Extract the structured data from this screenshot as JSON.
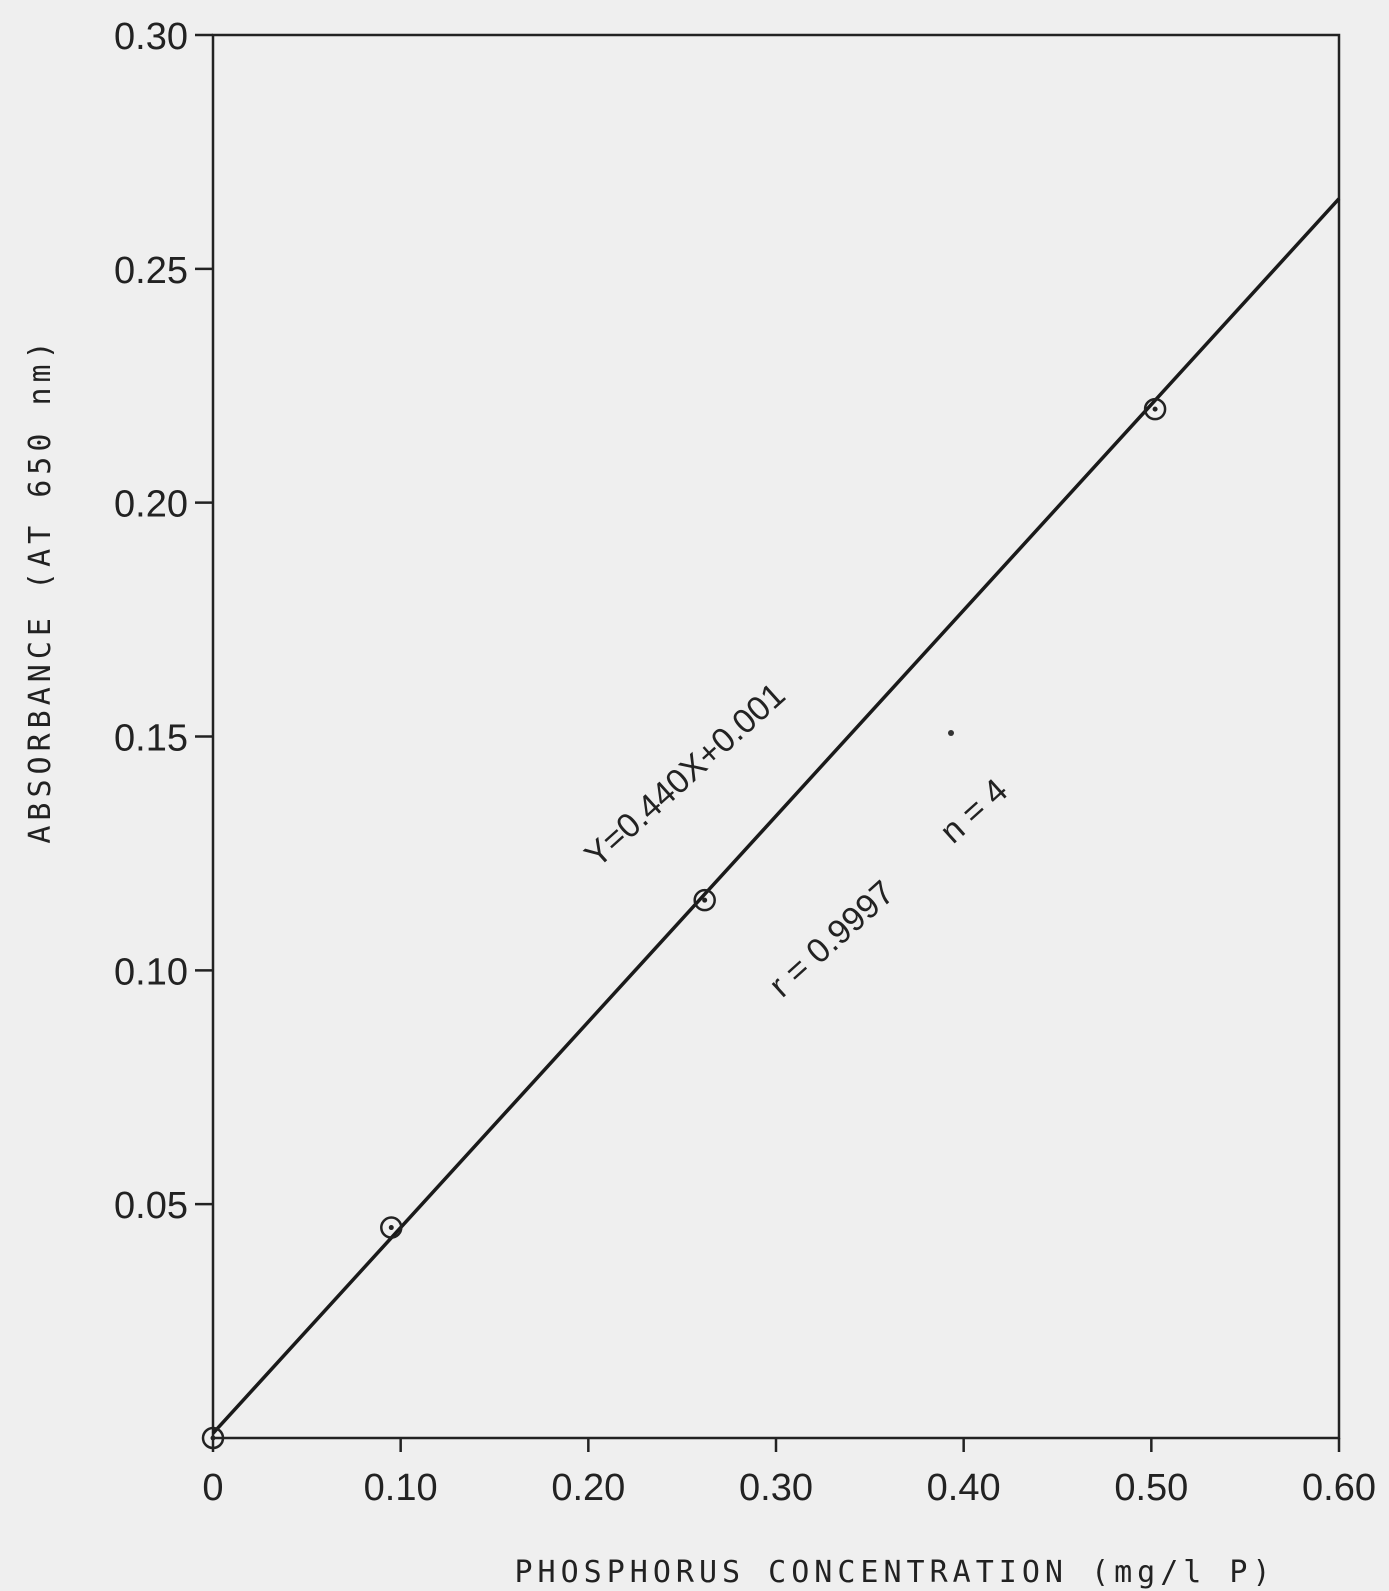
{
  "chart_data": {
    "type": "scatter",
    "title": "",
    "xlabel": "PHOSPHORUS CONCENTRATION (mg/l P)",
    "ylabel": "ABSORBANCE (AT 650 nm)",
    "xlim": [
      0,
      0.6
    ],
    "ylim": [
      0,
      0.3
    ],
    "x_tick_labels": [
      "0",
      "0.10",
      "0.20",
      "0.30",
      "0.40",
      "0.50",
      "0.60"
    ],
    "x_tick_values": [
      0,
      0.1,
      0.2,
      0.3,
      0.4,
      0.5,
      0.6
    ],
    "y_tick_labels": [
      "0.05",
      "0.10",
      "0.15",
      "0.20",
      "0.25",
      "0.30"
    ],
    "y_tick_values": [
      0.05,
      0.1,
      0.15,
      0.2,
      0.25,
      0.3
    ],
    "grid": false,
    "points": [
      {
        "x": 0.0,
        "y": 0.0
      },
      {
        "x": 0.095,
        "y": 0.045
      },
      {
        "x": 0.262,
        "y": 0.115
      },
      {
        "x": 0.502,
        "y": 0.22
      }
    ],
    "fit_line": {
      "slope": 0.44,
      "intercept": 0.001
    },
    "annotations": {
      "equation": "Y=0.440X+0.001",
      "correlation": "r = 0.9997",
      "count": "n = 4"
    }
  }
}
